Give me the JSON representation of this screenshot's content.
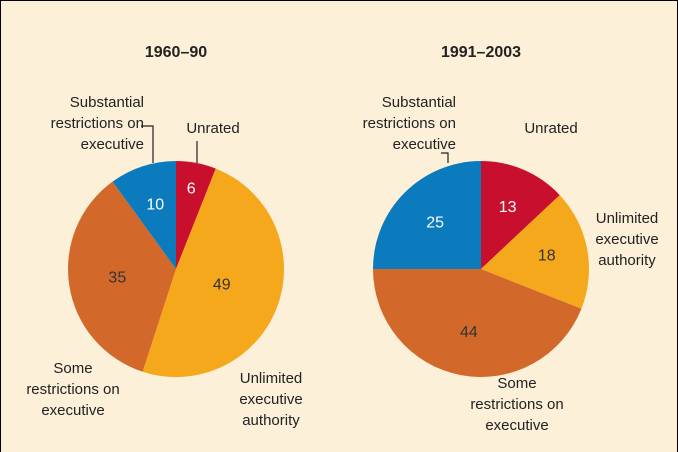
{
  "chart_data": [
    {
      "type": "pie",
      "title": "1960–90",
      "categories": [
        "Unrated",
        "Unlimited executive authority",
        "Some restrictions on executive",
        "Substantial restrictions on executive"
      ],
      "values": [
        6,
        49,
        35,
        10
      ],
      "colors": [
        "#c8102e",
        "#f5a81c",
        "#d2692b",
        "#0b7bbd"
      ]
    },
    {
      "type": "pie",
      "title": "1991–2003",
      "categories": [
        "Unrated",
        "Unlimited executive authority",
        "Some restrictions on executive",
        "Substantial restrictions on executive"
      ],
      "values": [
        13,
        18,
        44,
        25
      ],
      "colors": [
        "#c8102e",
        "#f5a81c",
        "#d2692b",
        "#0b7bbd"
      ]
    }
  ]
}
